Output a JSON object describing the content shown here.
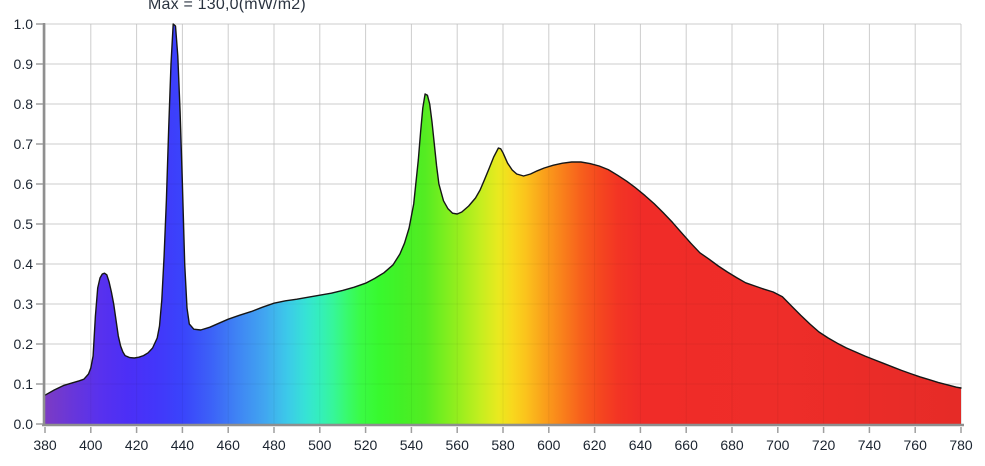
{
  "chart_data": {
    "type": "area",
    "title": "Max = 130,0(mW/m2)",
    "xlabel": "",
    "ylabel": "",
    "xlim": [
      380,
      780
    ],
    "ylim": [
      0.0,
      1.0
    ],
    "x_tick_step": 20,
    "y_tick_step": 0.1,
    "grid": true,
    "legend": "none",
    "x_tick_labels": [
      "380",
      "400",
      "420",
      "440",
      "460",
      "480",
      "500",
      "520",
      "540",
      "560",
      "580",
      "600",
      "620",
      "640",
      "660",
      "680",
      "700",
      "720",
      "740",
      "760",
      "780"
    ],
    "y_tick_labels": [
      "0.0",
      "0.1",
      "0.2",
      "0.3",
      "0.4",
      "0.5",
      "0.6",
      "0.7",
      "0.8",
      "0.9",
      "1.0"
    ],
    "peaks": [
      {
        "wavelength_nm": 405,
        "value": 0.375
      },
      {
        "wavelength_nm": 436,
        "value": 1.0
      },
      {
        "wavelength_nm": 546,
        "value": 0.825
      },
      {
        "wavelength_nm": 578,
        "value": 0.69
      },
      {
        "wavelength_nm": 612,
        "value": 0.655
      }
    ],
    "points": [
      [
        380,
        0.072
      ],
      [
        384,
        0.085
      ],
      [
        388,
        0.096
      ],
      [
        392,
        0.103
      ],
      [
        395,
        0.108
      ],
      [
        397,
        0.112
      ],
      [
        399,
        0.125
      ],
      [
        400,
        0.14
      ],
      [
        401,
        0.17
      ],
      [
        402,
        0.27
      ],
      [
        403,
        0.34
      ],
      [
        404,
        0.365
      ],
      [
        405,
        0.375
      ],
      [
        406,
        0.377
      ],
      [
        407,
        0.373
      ],
      [
        408,
        0.355
      ],
      [
        409,
        0.33
      ],
      [
        410,
        0.3
      ],
      [
        411,
        0.26
      ],
      [
        412,
        0.22
      ],
      [
        413,
        0.195
      ],
      [
        414,
        0.18
      ],
      [
        415,
        0.171
      ],
      [
        417,
        0.166
      ],
      [
        419,
        0.165
      ],
      [
        421,
        0.167
      ],
      [
        423,
        0.171
      ],
      [
        425,
        0.178
      ],
      [
        427,
        0.19
      ],
      [
        429,
        0.215
      ],
      [
        430,
        0.245
      ],
      [
        431,
        0.31
      ],
      [
        432,
        0.42
      ],
      [
        433,
        0.56
      ],
      [
        434,
        0.74
      ],
      [
        435,
        0.9
      ],
      [
        436,
        1.0
      ],
      [
        437,
        0.995
      ],
      [
        438,
        0.92
      ],
      [
        439,
        0.78
      ],
      [
        440,
        0.6
      ],
      [
        441,
        0.4
      ],
      [
        442,
        0.29
      ],
      [
        443,
        0.25
      ],
      [
        445,
        0.237
      ],
      [
        448,
        0.235
      ],
      [
        452,
        0.242
      ],
      [
        456,
        0.252
      ],
      [
        460,
        0.262
      ],
      [
        465,
        0.272
      ],
      [
        470,
        0.281
      ],
      [
        475,
        0.292
      ],
      [
        480,
        0.302
      ],
      [
        485,
        0.308
      ],
      [
        490,
        0.312
      ],
      [
        495,
        0.317
      ],
      [
        500,
        0.322
      ],
      [
        505,
        0.327
      ],
      [
        510,
        0.334
      ],
      [
        515,
        0.342
      ],
      [
        520,
        0.352
      ],
      [
        524,
        0.364
      ],
      [
        528,
        0.378
      ],
      [
        532,
        0.398
      ],
      [
        535,
        0.425
      ],
      [
        537,
        0.452
      ],
      [
        539,
        0.49
      ],
      [
        541,
        0.55
      ],
      [
        543,
        0.66
      ],
      [
        544,
        0.73
      ],
      [
        545,
        0.79
      ],
      [
        546,
        0.825
      ],
      [
        547,
        0.822
      ],
      [
        548,
        0.8
      ],
      [
        549,
        0.755
      ],
      [
        550,
        0.7
      ],
      [
        551,
        0.645
      ],
      [
        552,
        0.6
      ],
      [
        554,
        0.558
      ],
      [
        556,
        0.538
      ],
      [
        558,
        0.527
      ],
      [
        560,
        0.525
      ],
      [
        562,
        0.53
      ],
      [
        565,
        0.545
      ],
      [
        568,
        0.565
      ],
      [
        570,
        0.585
      ],
      [
        572,
        0.612
      ],
      [
        574,
        0.64
      ],
      [
        576,
        0.668
      ],
      [
        578,
        0.69
      ],
      [
        579,
        0.688
      ],
      [
        580,
        0.678
      ],
      [
        582,
        0.652
      ],
      [
        584,
        0.635
      ],
      [
        586,
        0.625
      ],
      [
        589,
        0.62
      ],
      [
        592,
        0.625
      ],
      [
        595,
        0.633
      ],
      [
        598,
        0.64
      ],
      [
        602,
        0.647
      ],
      [
        606,
        0.652
      ],
      [
        610,
        0.655
      ],
      [
        614,
        0.655
      ],
      [
        618,
        0.651
      ],
      [
        622,
        0.645
      ],
      [
        626,
        0.636
      ],
      [
        630,
        0.622
      ],
      [
        634,
        0.607
      ],
      [
        638,
        0.59
      ],
      [
        642,
        0.571
      ],
      [
        646,
        0.551
      ],
      [
        650,
        0.528
      ],
      [
        654,
        0.504
      ],
      [
        658,
        0.478
      ],
      [
        662,
        0.452
      ],
      [
        666,
        0.428
      ],
      [
        670,
        0.412
      ],
      [
        674,
        0.395
      ],
      [
        678,
        0.38
      ],
      [
        682,
        0.366
      ],
      [
        686,
        0.353
      ],
      [
        690,
        0.345
      ],
      [
        694,
        0.337
      ],
      [
        698,
        0.33
      ],
      [
        702,
        0.318
      ],
      [
        706,
        0.295
      ],
      [
        710,
        0.272
      ],
      [
        714,
        0.25
      ],
      [
        718,
        0.23
      ],
      [
        722,
        0.215
      ],
      [
        726,
        0.202
      ],
      [
        730,
        0.19
      ],
      [
        734,
        0.18
      ],
      [
        738,
        0.17
      ],
      [
        742,
        0.161
      ],
      [
        746,
        0.152
      ],
      [
        750,
        0.143
      ],
      [
        754,
        0.134
      ],
      [
        758,
        0.126
      ],
      [
        762,
        0.118
      ],
      [
        766,
        0.111
      ],
      [
        770,
        0.104
      ],
      [
        774,
        0.098
      ],
      [
        778,
        0.092
      ],
      [
        780,
        0.09
      ]
    ],
    "gradient_stops": [
      [
        380,
        "#7c3bc4"
      ],
      [
        392,
        "#6836da"
      ],
      [
        404,
        "#5831ee"
      ],
      [
        416,
        "#4c2ff6"
      ],
      [
        428,
        "#4336fa"
      ],
      [
        440,
        "#3a44fb"
      ],
      [
        452,
        "#3c60f8"
      ],
      [
        464,
        "#3f84f4"
      ],
      [
        476,
        "#41a6f0"
      ],
      [
        486,
        "#3ccae9"
      ],
      [
        494,
        "#36e3d5"
      ],
      [
        500,
        "#34efbc"
      ],
      [
        506,
        "#36f699"
      ],
      [
        512,
        "#38fa6c"
      ],
      [
        518,
        "#3afb45"
      ],
      [
        526,
        "#38f92e"
      ],
      [
        536,
        "#43f026"
      ],
      [
        546,
        "#54ec22"
      ],
      [
        554,
        "#79ee1f"
      ],
      [
        562,
        "#9dee1e"
      ],
      [
        570,
        "#c4ee1f"
      ],
      [
        578,
        "#e9e91f"
      ],
      [
        584,
        "#f8d81d"
      ],
      [
        590,
        "#fbc31c"
      ],
      [
        598,
        "#faa01b"
      ],
      [
        606,
        "#f9801b"
      ],
      [
        614,
        "#f7601c"
      ],
      [
        622,
        "#f5471f"
      ],
      [
        630,
        "#f33524"
      ],
      [
        640,
        "#f02c28"
      ],
      [
        700,
        "#ee2d29"
      ],
      [
        780,
        "#e62b27"
      ]
    ],
    "colors": {
      "background": "#ffffff",
      "grid": "#d9d9d9",
      "axis": "#8f8f8f",
      "tick": "#9f9f9f",
      "tick_label": "#1b2430",
      "title": "#2a3340",
      "curve_outline": "#161616"
    }
  }
}
